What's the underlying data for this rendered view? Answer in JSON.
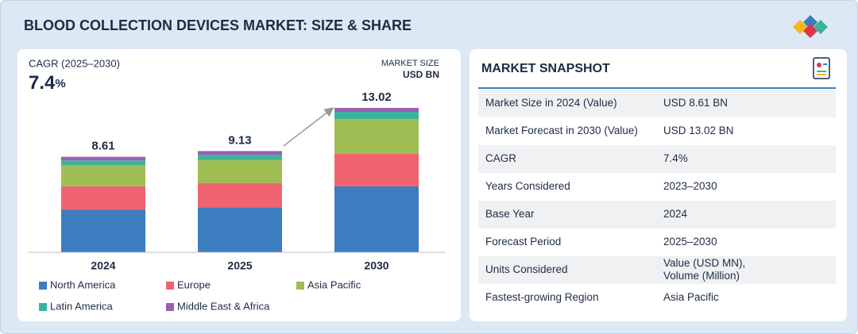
{
  "title": "BLOOD COLLECTION DEVICES MARKET: SIZE & SHARE",
  "chart_data": {
    "type": "stacked_bar",
    "cagr_label": "CAGR (2025–2030)",
    "cagr": 7.4,
    "cagr_unit": "%",
    "unit_label": "MARKET SIZE",
    "unit": "USD BN",
    "categories": [
      "2024",
      "2025",
      "2030"
    ],
    "totals": [
      8.61,
      9.13,
      13.02
    ],
    "series": [
      {
        "name": "North America",
        "color": "#3b7dbf",
        "values": [
          3.83,
          4.05,
          5.94
        ]
      },
      {
        "name": "Europe",
        "color": "#ef6470",
        "values": [
          2.12,
          2.2,
          2.93
        ]
      },
      {
        "name": "Asia Pacific",
        "color": "#9fbf55",
        "values": [
          1.92,
          2.06,
          3.15
        ]
      },
      {
        "name": "Latin America",
        "color": "#3bb39b",
        "values": [
          0.41,
          0.48,
          0.64
        ]
      },
      {
        "name": "Middle East & Africa",
        "color": "#9a5fb0",
        "values": [
          0.33,
          0.34,
          0.36
        ]
      }
    ]
  },
  "snapshot": {
    "title": "MARKET SNAPSHOT",
    "rows": [
      {
        "label": "Market Size in 2024 (Value)",
        "value": [
          "USD 8.61 BN"
        ]
      },
      {
        "label": "Market Forecast in 2030 (Value)",
        "value": [
          "USD 13.02 BN"
        ]
      },
      {
        "label": "CAGR",
        "value": [
          "7.4%"
        ]
      },
      {
        "label": "Years Considered",
        "value": [
          "2023–2030"
        ]
      },
      {
        "label": "Base Year",
        "value": [
          "2024"
        ]
      },
      {
        "label": "Forecast Period",
        "value": [
          "2025–2030"
        ]
      },
      {
        "label": "Units Considered",
        "value": [
          "Value (USD MN),",
          "Volume (Million)"
        ]
      },
      {
        "label": "Fastest-growing Region",
        "value": [
          "Asia Pacific"
        ]
      }
    ]
  }
}
